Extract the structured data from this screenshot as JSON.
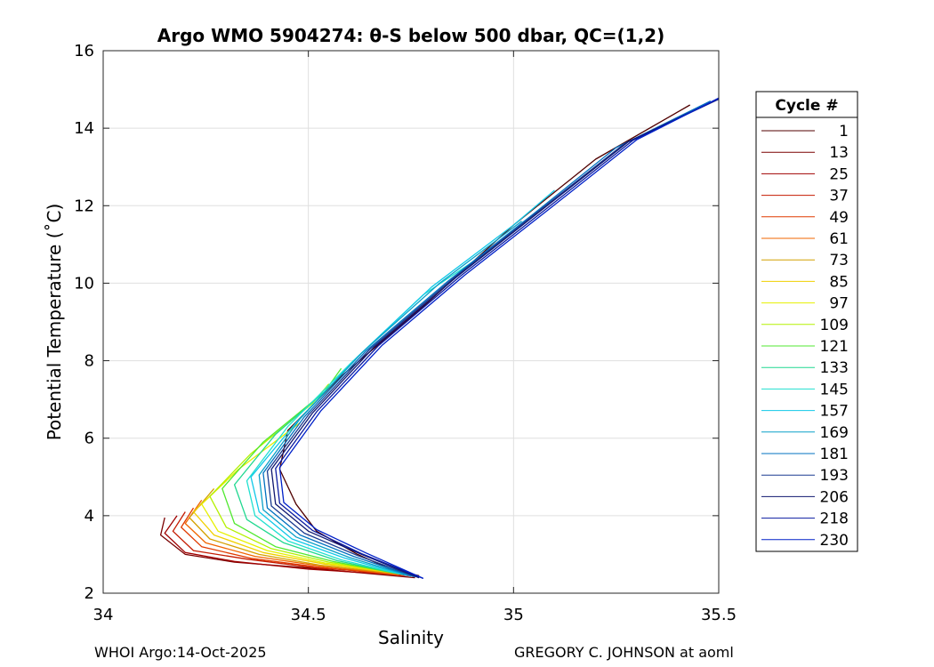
{
  "chart_data": {
    "type": "line",
    "title": "Argo WMO 5904274: θ-S below 500 dbar,  QC=(1,2)",
    "xlabel": "Salinity",
    "ylabel": "Potential Temperature (˚C)",
    "xlim": [
      34,
      35.5
    ],
    "ylim": [
      2,
      16
    ],
    "xticks": [
      34,
      34.5,
      35,
      35.5
    ],
    "xtick_labels": [
      "34",
      "34.5",
      "35",
      "35.5"
    ],
    "yticks": [
      2,
      4,
      6,
      8,
      10,
      12,
      14,
      16
    ],
    "ytick_labels": [
      "2",
      "4",
      "6",
      "8",
      "10",
      "12",
      "14",
      "16"
    ],
    "grid": true,
    "legend_title": "Cycle #",
    "legend_placement": "right-outside",
    "series": [
      {
        "name": "1",
        "color": "#500000",
        "points": [
          [
            34.77,
            2.45
          ],
          [
            34.7,
            2.62
          ],
          [
            34.62,
            3.0
          ],
          [
            34.52,
            3.6
          ],
          [
            34.47,
            4.3
          ],
          [
            34.43,
            5.2
          ],
          [
            34.45,
            6.2
          ],
          [
            34.58,
            7.6
          ],
          [
            34.78,
            9.4
          ],
          [
            35.0,
            11.5
          ],
          [
            35.2,
            13.2
          ],
          [
            35.43,
            14.6
          ]
        ]
      },
      {
        "name": "13",
        "color": "#7a0000",
        "points": [
          [
            34.76,
            2.4
          ],
          [
            34.5,
            2.65
          ],
          [
            34.32,
            2.8
          ],
          [
            34.2,
            3.0
          ],
          [
            34.14,
            3.5
          ],
          [
            34.15,
            3.95
          ]
        ]
      },
      {
        "name": "25",
        "color": "#a00000",
        "points": [
          [
            34.75,
            2.45
          ],
          [
            34.5,
            2.62
          ],
          [
            34.32,
            2.82
          ],
          [
            34.2,
            3.05
          ],
          [
            34.15,
            3.55
          ],
          [
            34.18,
            4.0
          ]
        ]
      },
      {
        "name": "37",
        "color": "#c41a00",
        "points": [
          [
            34.74,
            2.5
          ],
          [
            34.52,
            2.65
          ],
          [
            34.35,
            2.88
          ],
          [
            34.22,
            3.1
          ],
          [
            34.17,
            3.6
          ],
          [
            34.2,
            4.1
          ]
        ]
      },
      {
        "name": "49",
        "color": "#e03a00",
        "points": [
          [
            34.73,
            2.45
          ],
          [
            34.52,
            2.68
          ],
          [
            34.36,
            2.9
          ],
          [
            34.24,
            3.2
          ],
          [
            34.19,
            3.7
          ],
          [
            34.22,
            4.2
          ]
        ]
      },
      {
        "name": "61",
        "color": "#f06400",
        "points": [
          [
            34.72,
            2.48
          ],
          [
            34.53,
            2.7
          ],
          [
            34.37,
            2.95
          ],
          [
            34.25,
            3.3
          ],
          [
            34.2,
            3.8
          ],
          [
            34.24,
            4.4
          ]
        ]
      },
      {
        "name": "73",
        "color": "#d4a000",
        "points": [
          [
            34.72,
            2.5
          ],
          [
            34.53,
            2.72
          ],
          [
            34.38,
            3.0
          ],
          [
            34.26,
            3.4
          ],
          [
            34.21,
            3.95
          ],
          [
            34.27,
            4.7
          ]
        ]
      },
      {
        "name": "85",
        "color": "#f0d000",
        "points": [
          [
            34.71,
            2.52
          ],
          [
            34.54,
            2.75
          ],
          [
            34.39,
            3.05
          ],
          [
            34.27,
            3.5
          ],
          [
            34.22,
            4.1
          ],
          [
            34.3,
            4.9
          ]
        ]
      },
      {
        "name": "97",
        "color": "#e6f000",
        "points": [
          [
            34.7,
            2.55
          ],
          [
            34.54,
            2.78
          ],
          [
            34.4,
            3.1
          ],
          [
            34.28,
            3.6
          ],
          [
            34.24,
            4.3
          ],
          [
            34.33,
            5.2
          ],
          [
            34.48,
            6.4
          ]
        ]
      },
      {
        "name": "109",
        "color": "#b4f000",
        "points": [
          [
            34.7,
            2.55
          ],
          [
            34.55,
            2.8
          ],
          [
            34.41,
            3.15
          ],
          [
            34.3,
            3.7
          ],
          [
            34.26,
            4.5
          ],
          [
            34.36,
            5.6
          ],
          [
            34.51,
            6.9
          ],
          [
            34.55,
            7.4
          ]
        ]
      },
      {
        "name": "121",
        "color": "#50e830",
        "points": [
          [
            34.71,
            2.52
          ],
          [
            34.56,
            2.82
          ],
          [
            34.42,
            3.2
          ],
          [
            34.32,
            3.8
          ],
          [
            34.29,
            4.7
          ],
          [
            34.39,
            5.9
          ],
          [
            34.54,
            7.2
          ],
          [
            34.58,
            7.8
          ]
        ]
      },
      {
        "name": "133",
        "color": "#20d890",
        "points": [
          [
            34.72,
            2.5
          ],
          [
            34.57,
            2.84
          ],
          [
            34.44,
            3.3
          ],
          [
            34.35,
            3.9
          ],
          [
            34.32,
            4.8
          ],
          [
            34.42,
            6.1
          ],
          [
            34.55,
            7.3
          ],
          [
            34.61,
            8.0
          ]
        ]
      },
      {
        "name": "145",
        "color": "#20e0d0",
        "points": [
          [
            34.73,
            2.48
          ],
          [
            34.58,
            2.86
          ],
          [
            34.45,
            3.35
          ],
          [
            34.37,
            4.0
          ],
          [
            34.35,
            4.9
          ],
          [
            34.45,
            6.3
          ],
          [
            34.6,
            7.9
          ],
          [
            34.78,
            9.7
          ],
          [
            34.95,
            10.9
          ]
        ]
      },
      {
        "name": "157",
        "color": "#10c8e8",
        "points": [
          [
            34.74,
            2.46
          ],
          [
            34.59,
            2.9
          ],
          [
            34.46,
            3.4
          ],
          [
            34.38,
            4.1
          ],
          [
            34.36,
            5.0
          ],
          [
            34.47,
            6.4
          ],
          [
            34.62,
            8.1
          ],
          [
            34.8,
            9.9
          ],
          [
            35.0,
            11.5
          ],
          [
            35.1,
            12.4
          ]
        ]
      },
      {
        "name": "169",
        "color": "#0aa0c8",
        "points": [
          [
            34.75,
            2.44
          ],
          [
            34.6,
            2.92
          ],
          [
            34.47,
            3.45
          ],
          [
            34.39,
            4.15
          ],
          [
            34.38,
            5.05
          ],
          [
            34.48,
            6.5
          ],
          [
            34.63,
            8.2
          ],
          [
            34.82,
            10.0
          ],
          [
            35.02,
            11.6
          ]
        ]
      },
      {
        "name": "181",
        "color": "#0070c0",
        "points": [
          [
            34.76,
            2.42
          ],
          [
            34.61,
            2.95
          ],
          [
            34.48,
            3.5
          ],
          [
            34.4,
            4.2
          ],
          [
            34.39,
            5.1
          ],
          [
            34.49,
            6.55
          ],
          [
            34.64,
            8.25
          ],
          [
            34.84,
            10.05
          ],
          [
            35.05,
            11.8
          ],
          [
            35.25,
            13.5
          ],
          [
            35.48,
            14.7
          ]
        ]
      },
      {
        "name": "193",
        "color": "#1a3a90",
        "points": [
          [
            34.77,
            2.4
          ],
          [
            34.62,
            2.97
          ],
          [
            34.49,
            3.55
          ],
          [
            34.41,
            4.25
          ],
          [
            34.4,
            5.15
          ],
          [
            34.5,
            6.6
          ],
          [
            34.65,
            8.3
          ],
          [
            34.85,
            10.1
          ],
          [
            35.06,
            11.85
          ],
          [
            35.27,
            13.6
          ],
          [
            35.49,
            14.72
          ]
        ]
      },
      {
        "name": "206",
        "color": "#101870",
        "points": [
          [
            34.77,
            2.4
          ],
          [
            34.63,
            3.0
          ],
          [
            34.5,
            3.6
          ],
          [
            34.42,
            4.3
          ],
          [
            34.41,
            5.2
          ],
          [
            34.51,
            6.65
          ],
          [
            34.66,
            8.35
          ],
          [
            34.86,
            10.15
          ],
          [
            35.07,
            11.9
          ],
          [
            35.28,
            13.65
          ],
          [
            35.5,
            14.75
          ]
        ]
      },
      {
        "name": "218",
        "color": "#0a1aa0",
        "points": [
          [
            34.78,
            2.38
          ],
          [
            34.63,
            3.02
          ],
          [
            34.51,
            3.62
          ],
          [
            34.43,
            4.32
          ],
          [
            34.42,
            5.22
          ],
          [
            34.52,
            6.68
          ],
          [
            34.67,
            8.38
          ],
          [
            34.87,
            10.18
          ],
          [
            35.08,
            11.92
          ],
          [
            35.29,
            13.68
          ],
          [
            35.5,
            14.76
          ]
        ]
      },
      {
        "name": "230",
        "color": "#0020c8",
        "points": [
          [
            34.78,
            2.38
          ],
          [
            34.64,
            3.04
          ],
          [
            34.52,
            3.64
          ],
          [
            34.44,
            4.34
          ],
          [
            34.43,
            5.24
          ],
          [
            34.53,
            6.7
          ],
          [
            34.68,
            8.4
          ],
          [
            34.88,
            10.2
          ],
          [
            35.09,
            11.94
          ],
          [
            35.3,
            13.7
          ],
          [
            35.5,
            14.78
          ]
        ]
      }
    ]
  },
  "footer": {
    "left": "WHOI Argo:14-Oct-2025",
    "right": "GREGORY C. JOHNSON at aoml"
  }
}
